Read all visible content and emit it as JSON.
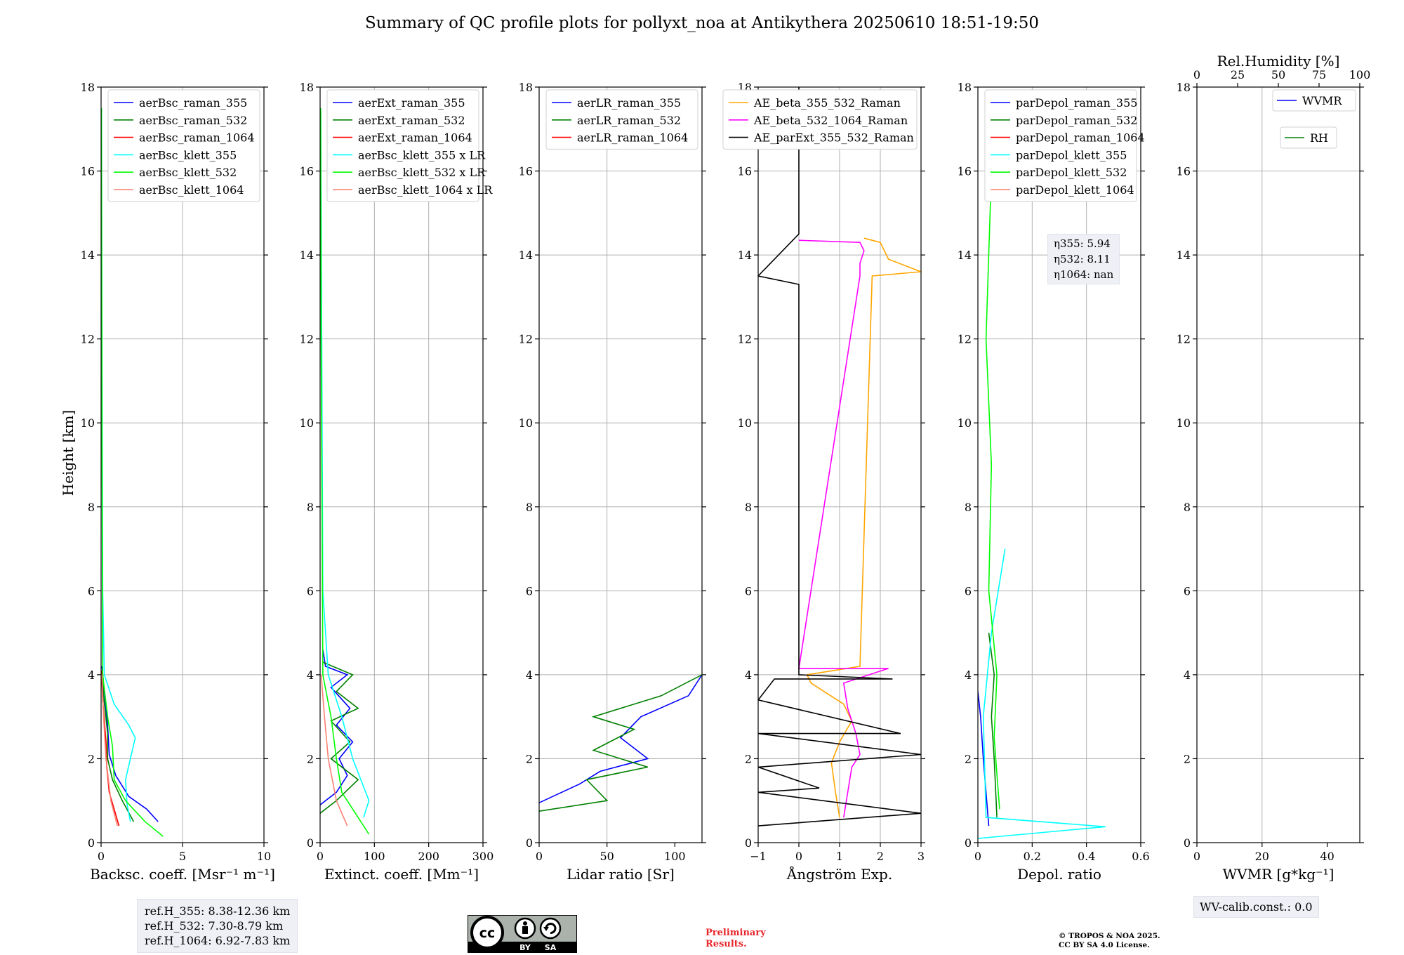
{
  "title": "Summary of QC profile plots for pollyxt_noa at Antikythera 20250610 18:51-19:50",
  "y_label": "Height [km]",
  "reference_heights": [
    "ref.H_355: 8.38-12.36 km",
    "ref.H_532: 7.30-8.79 km",
    "ref.H_1064: 6.92-7.83 km"
  ],
  "depol_annotation": [
    "η355: 5.94",
    "η532: 8.11",
    "η1064: nan"
  ],
  "wv_calib": "WV-calib.const.: 0.0",
  "license_badge": [
    "cc",
    "BY",
    "SA"
  ],
  "preliminary": [
    "Preliminary",
    "Results."
  ],
  "copyright": [
    "© TROPOS & NOA 2025.",
    "CC BY SA 4.0 License."
  ],
  "colors": {
    "blue": "#0000ff",
    "green": "#008000",
    "red": "#ff0000",
    "cyan": "#00ffff",
    "lime": "#00ff00",
    "salmon": "#fa8072",
    "orange": "#ffa500",
    "magenta": "#ff00ff",
    "black": "#000000"
  },
  "chart_data": [
    {
      "type": "line",
      "xlabel": "Backsc. coeff. [Msr⁻¹ m⁻¹]",
      "ylabel": "Height [km]",
      "xlim": [
        0,
        10
      ],
      "ylim": [
        0,
        18
      ],
      "xticks": [
        0,
        5,
        10
      ],
      "yticks": [
        0,
        2,
        4,
        6,
        8,
        10,
        12,
        14,
        16,
        18
      ],
      "grid": true,
      "legend": "top-left",
      "series": [
        {
          "name": "aerBsc_raman_355",
          "color": "blue",
          "points": [
            [
              3.5,
              0.5
            ],
            [
              2.8,
              0.8
            ],
            [
              1.7,
              1.1
            ],
            [
              0.9,
              1.6
            ],
            [
              0.5,
              2.1
            ],
            [
              0.4,
              2.8
            ],
            [
              0.2,
              3.6
            ],
            [
              0.05,
              4.2
            ]
          ]
        },
        {
          "name": "aerBsc_raman_532",
          "color": "green",
          "points": [
            [
              2.0,
              0.5
            ],
            [
              1.3,
              1.0
            ],
            [
              0.7,
              1.5
            ],
            [
              0.4,
              2.0
            ],
            [
              0.4,
              2.6
            ],
            [
              0.15,
              3.5
            ],
            [
              0.05,
              4.1
            ]
          ]
        },
        {
          "name": "aerBsc_raman_1064",
          "color": "red",
          "points": [
            [
              1.1,
              0.4
            ],
            [
              0.8,
              0.8
            ],
            [
              0.5,
              1.2
            ],
            [
              0.35,
              1.8
            ],
            [
              0.3,
              2.4
            ],
            [
              0.1,
              3.4
            ],
            [
              0.02,
              4.1
            ]
          ]
        },
        {
          "name": "aerBsc_klett_355",
          "color": "cyan",
          "points": [
            [
              1.8,
              0.5
            ],
            [
              1.6,
              0.9
            ],
            [
              1.5,
              1.5
            ],
            [
              2.1,
              2.5
            ],
            [
              1.7,
              2.8
            ],
            [
              0.8,
              3.3
            ],
            [
              0.2,
              4.0
            ],
            [
              0.1,
              6.0
            ],
            [
              0.05,
              12.0
            ],
            [
              0.02,
              17.5
            ]
          ]
        },
        {
          "name": "aerBsc_klett_532",
          "color": "lime",
          "points": [
            [
              3.8,
              0.15
            ],
            [
              2.7,
              0.5
            ],
            [
              1.5,
              1.0
            ],
            [
              0.8,
              1.5
            ],
            [
              0.7,
              2.3
            ],
            [
              0.4,
              3.0
            ],
            [
              0.1,
              4.0
            ],
            [
              0.05,
              10.0
            ],
            [
              0.02,
              17.5
            ]
          ]
        },
        {
          "name": "aerBsc_klett_1064",
          "color": "salmon",
          "points": [
            [
              1.0,
              0.4
            ],
            [
              0.6,
              1.0
            ],
            [
              0.3,
              2.0
            ],
            [
              0.15,
              3.0
            ],
            [
              0.05,
              4.0
            ]
          ]
        }
      ]
    },
    {
      "type": "line",
      "xlabel": "Extinct. coeff. [Mm⁻¹]",
      "ylabel": "Height [km]",
      "xlim": [
        0,
        300
      ],
      "ylim": [
        0,
        18
      ],
      "xticks": [
        0,
        100,
        200,
        300
      ],
      "yticks": [
        0,
        2,
        4,
        6,
        8,
        10,
        12,
        14,
        16,
        18
      ],
      "grid": true,
      "legend": "top-left",
      "series": [
        {
          "name": "aerExt_raman_355",
          "color": "blue",
          "points": [
            [
              0,
              0.9
            ],
            [
              30,
              1.2
            ],
            [
              50,
              1.6
            ],
            [
              35,
              2.0
            ],
            [
              60,
              2.4
            ],
            [
              30,
              2.8
            ],
            [
              55,
              3.2
            ],
            [
              20,
              3.7
            ],
            [
              50,
              4.0
            ],
            [
              10,
              4.2
            ],
            [
              5,
              4.6
            ]
          ]
        },
        {
          "name": "aerExt_raman_532",
          "color": "green",
          "points": [
            [
              0,
              0.7
            ],
            [
              30,
              1.0
            ],
            [
              70,
              1.5
            ],
            [
              20,
              2.0
            ],
            [
              55,
              2.4
            ],
            [
              20,
              2.9
            ],
            [
              70,
              3.2
            ],
            [
              30,
              3.6
            ],
            [
              60,
              4.0
            ],
            [
              5,
              4.3
            ]
          ]
        },
        {
          "name": "aerExt_raman_1064",
          "color": "red",
          "points": []
        },
        {
          "name": "aerBsc_klett_355 x LR",
          "color": "cyan",
          "points": [
            [
              80,
              0.6
            ],
            [
              90,
              1.0
            ],
            [
              60,
              2.0
            ],
            [
              40,
              3.0
            ],
            [
              15,
              4.0
            ],
            [
              5,
              6.0
            ],
            [
              3,
              12.0
            ],
            [
              1,
              17.5
            ]
          ]
        },
        {
          "name": "aerBsc_klett_532 x LR",
          "color": "lime",
          "points": [
            [
              90,
              0.2
            ],
            [
              70,
              0.6
            ],
            [
              40,
              1.2
            ],
            [
              30,
              2.0
            ],
            [
              20,
              3.0
            ],
            [
              5,
              4.0
            ],
            [
              2,
              12.0
            ],
            [
              1,
              17.5
            ]
          ]
        },
        {
          "name": "aerBsc_klett_1064 x LR",
          "color": "salmon",
          "points": [
            [
              50,
              0.4
            ],
            [
              30,
              1.0
            ],
            [
              15,
              2.0
            ],
            [
              8,
              3.0
            ],
            [
              2,
              4.0
            ]
          ]
        }
      ]
    },
    {
      "type": "line",
      "xlabel": "Lidar ratio [Sr]",
      "ylabel": "Height [km]",
      "xlim": [
        0,
        120
      ],
      "ylim": [
        0,
        18
      ],
      "xticks": [
        0,
        50,
        100
      ],
      "yticks": [
        0,
        2,
        4,
        6,
        8,
        10,
        12,
        14,
        16,
        18
      ],
      "grid": true,
      "legend": "top-left",
      "series": [
        {
          "name": "aerLR_raman_355",
          "color": "blue",
          "points": [
            [
              0,
              0.95
            ],
            [
              30,
              1.4
            ],
            [
              45,
              1.7
            ],
            [
              80,
              2.0
            ],
            [
              60,
              2.5
            ],
            [
              75,
              3.0
            ],
            [
              110,
              3.5
            ],
            [
              120,
              4.0
            ]
          ]
        },
        {
          "name": "aerLR_raman_532",
          "color": "green",
          "points": [
            [
              0,
              0.75
            ],
            [
              50,
              1.0
            ],
            [
              35,
              1.5
            ],
            [
              80,
              1.8
            ],
            [
              40,
              2.2
            ],
            [
              70,
              2.7
            ],
            [
              40,
              3.0
            ],
            [
              90,
              3.5
            ],
            [
              120,
              4.0
            ]
          ]
        },
        {
          "name": "aerLR_raman_1064",
          "color": "red",
          "points": []
        }
      ]
    },
    {
      "type": "line",
      "xlabel": "Ångström Exp.",
      "ylabel": "Height [km]",
      "xlim": [
        -1,
        3
      ],
      "ylim": [
        0,
        18
      ],
      "xticks": [
        -1,
        0,
        1,
        2,
        3
      ],
      "yticks": [
        0,
        2,
        4,
        6,
        8,
        10,
        12,
        14,
        16,
        18
      ],
      "grid": true,
      "legend": "top-left",
      "series": [
        {
          "name": "AE_beta_355_532_Raman",
          "color": "orange",
          "points": [
            [
              1.0,
              0.6
            ],
            [
              0.9,
              1.2
            ],
            [
              0.8,
              1.9
            ],
            [
              1.0,
              2.4
            ],
            [
              1.3,
              2.9
            ],
            [
              1.1,
              3.3
            ],
            [
              0.3,
              3.8
            ],
            [
              0.2,
              4.0
            ],
            [
              1.5,
              4.2
            ],
            [
              1.8,
              13.5
            ],
            [
              3.0,
              13.6
            ],
            [
              2.2,
              13.9
            ],
            [
              2.0,
              14.3
            ],
            [
              1.6,
              14.4
            ]
          ]
        },
        {
          "name": "AE_beta_532_1064_Raman",
          "color": "magenta",
          "points": [
            [
              1.1,
              0.6
            ],
            [
              1.2,
              1.2
            ],
            [
              1.3,
              1.8
            ],
            [
              1.5,
              2.1
            ],
            [
              1.4,
              2.6
            ],
            [
              1.2,
              3.2
            ],
            [
              1.1,
              3.8
            ],
            [
              2.2,
              4.15
            ],
            [
              0,
              4.15
            ],
            [
              1.5,
              13.5
            ],
            [
              1.5,
              13.8
            ],
            [
              1.6,
              14.1
            ],
            [
              1.5,
              14.3
            ],
            [
              0,
              14.35
            ]
          ]
        },
        {
          "name": "AE_parExt_355_532_Raman",
          "color": "black",
          "points": [
            [
              -1,
              0.4
            ],
            [
              3,
              0.7
            ],
            [
              -1,
              1.2
            ],
            [
              0.5,
              1.3
            ],
            [
              -1,
              1.8
            ],
            [
              3,
              2.1
            ],
            [
              -1,
              2.6
            ],
            [
              2.5,
              2.6
            ],
            [
              -1,
              3.4
            ],
            [
              -0.6,
              3.9
            ],
            [
              2.3,
              3.9
            ],
            [
              0,
              4.0
            ],
            [
              0,
              13.3
            ],
            [
              -1,
              13.5
            ],
            [
              0,
              14.5
            ],
            [
              0,
              18
            ]
          ]
        }
      ]
    },
    {
      "type": "line",
      "xlabel": "Depol. ratio",
      "ylabel": "Height [km]",
      "xlim": [
        0,
        0.6
      ],
      "ylim": [
        0,
        18
      ],
      "xticks": [
        0.0,
        0.2,
        0.4,
        0.6
      ],
      "yticks": [
        0,
        2,
        4,
        6,
        8,
        10,
        12,
        14,
        16,
        18
      ],
      "grid": true,
      "legend": "top-left",
      "series": [
        {
          "name": "parDepol_raman_355",
          "color": "blue",
          "points": [
            [
              0.04,
              0.4
            ],
            [
              0.03,
              1.2
            ],
            [
              0.02,
              2.0
            ],
            [
              0.01,
              3.0
            ],
            [
              0.0,
              3.6
            ]
          ]
        },
        {
          "name": "parDepol_raman_532",
          "color": "green",
          "points": [
            [
              0.07,
              0.6
            ],
            [
              0.06,
              2.0
            ],
            [
              0.05,
              3.0
            ],
            [
              0.06,
              4.0
            ],
            [
              0.04,
              5.0
            ]
          ]
        },
        {
          "name": "parDepol_raman_1064",
          "color": "red",
          "points": []
        },
        {
          "name": "parDepol_klett_355",
          "color": "cyan",
          "points": [
            [
              0.0,
              0.1
            ],
            [
              0.47,
              0.38
            ],
            [
              0.03,
              0.6
            ],
            [
              0.02,
              3.0
            ],
            [
              0.05,
              5.0
            ],
            [
              0.1,
              7.0
            ]
          ]
        },
        {
          "name": "parDepol_klett_532",
          "color": "lime",
          "points": [
            [
              0.08,
              0.8
            ],
            [
              0.06,
              2.5
            ],
            [
              0.07,
              4.0
            ],
            [
              0.04,
              6.0
            ],
            [
              0.05,
              9.0
            ],
            [
              0.03,
              12.0
            ],
            [
              0.05,
              16.0
            ]
          ]
        },
        {
          "name": "parDepol_klett_1064",
          "color": "salmon",
          "points": []
        }
      ]
    },
    {
      "type": "line",
      "xlabel": "WVMR [g*kg⁻¹]",
      "x2label": "Rel.Humidity [%]",
      "ylabel": "Height [km]",
      "xlim": [
        0,
        50
      ],
      "x2lim": [
        0,
        100
      ],
      "ylim": [
        0,
        18
      ],
      "xticks": [
        0,
        20,
        40
      ],
      "x2ticks": [
        0,
        25,
        50,
        75,
        100
      ],
      "yticks": [
        0,
        2,
        4,
        6,
        8,
        10,
        12,
        14,
        16,
        18
      ],
      "grid": true,
      "legend": "top-right",
      "series": [
        {
          "name": "WVMR",
          "color": "blue",
          "points": []
        },
        {
          "name": "RH",
          "color": "green",
          "points": []
        }
      ]
    }
  ]
}
